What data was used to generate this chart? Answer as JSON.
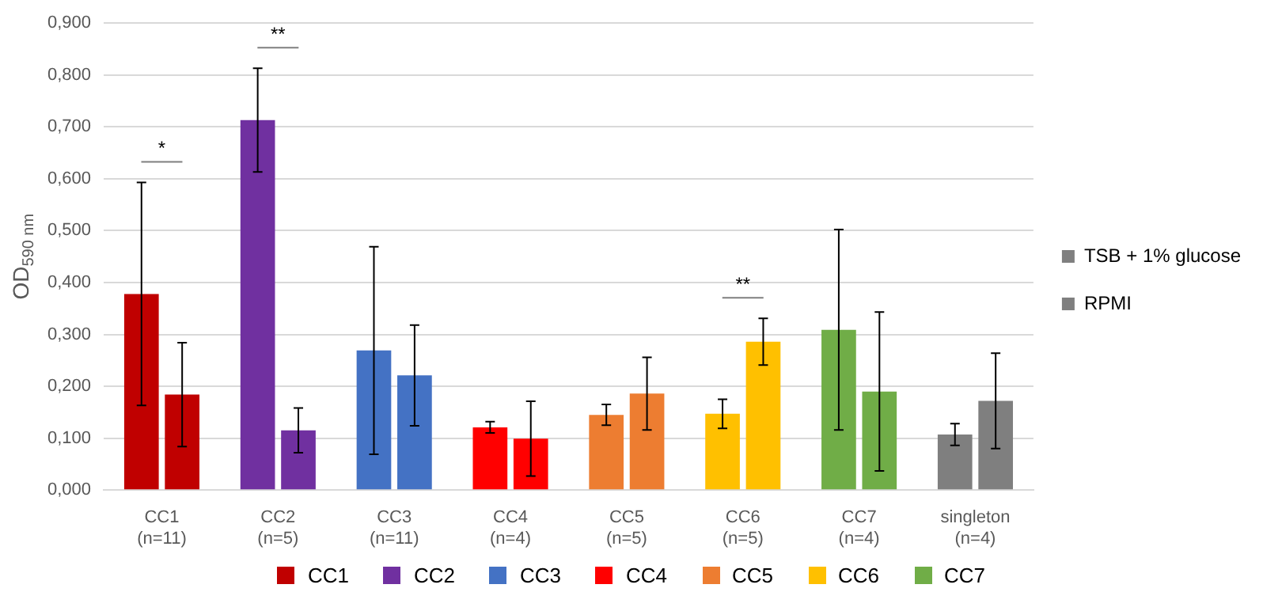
{
  "chart_data": {
    "type": "bar",
    "ylabel": "OD$_{590 nm}$",
    "categories": [
      "CC1\n(n=11)",
      "CC2\n(n=5)",
      "CC3\n(n=11)",
      "CC4\n(n=4)",
      "CC5\n(n=5)",
      "CC6\n(n=5)",
      "CC7\n(n=4)",
      "singleton\n(n=4)"
    ],
    "series": [
      {
        "name": "TSB + 1% glucose",
        "color": "#7f7f7f",
        "colors": [
          "#c00000",
          "#7030a0",
          "#4472c4",
          "#ff0000",
          "#ed7d31",
          "#ffc000",
          "#70ad47",
          "#7f7f7f"
        ],
        "values": [
          0.378,
          0.713,
          0.269,
          0.121,
          0.145,
          0.147,
          0.309,
          0.107
        ],
        "errors": [
          0.215,
          0.1,
          0.2,
          0.011,
          0.02,
          0.028,
          0.193,
          0.021
        ]
      },
      {
        "name": "RPMI",
        "color": "#7f7f7f",
        "colors": [
          "#c00000",
          "#7030a0",
          "#4472c4",
          "#ff0000",
          "#ed7d31",
          "#ffc000",
          "#70ad47",
          "#7f7f7f"
        ],
        "values": [
          0.184,
          0.115,
          0.221,
          0.099,
          0.186,
          0.286,
          0.19,
          0.172
        ],
        "errors": [
          0.1,
          0.043,
          0.097,
          0.072,
          0.07,
          0.045,
          0.153,
          0.092
        ]
      }
    ],
    "ylim": [
      0,
      0.9
    ],
    "yticks": [
      {
        "value": 0,
        "label": "0,000"
      },
      {
        "value": 0.1,
        "label": "0,100"
      },
      {
        "value": 0.2,
        "label": "0,200"
      },
      {
        "value": 0.3,
        "label": "0,300"
      },
      {
        "value": 0.4,
        "label": "0,400"
      },
      {
        "value": 0.5,
        "label": "0,500"
      },
      {
        "value": 0.6,
        "label": "0,600"
      },
      {
        "value": 0.7,
        "label": "0,700"
      },
      {
        "value": 0.8,
        "label": "0,800"
      },
      {
        "value": 0.9,
        "label": "0,900"
      }
    ],
    "grid": "y",
    "legend": "right",
    "annotations": [
      "*",
      "**",
      "**",
      "CC1",
      "CC2",
      "CC3",
      "CC4",
      "CC5",
      "CC6",
      "CC7"
    ]
  }
}
